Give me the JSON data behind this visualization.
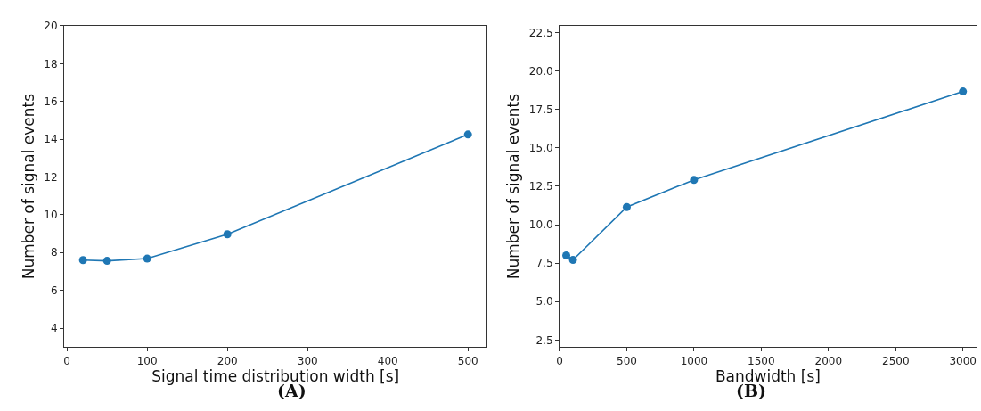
{
  "chart_data": [
    {
      "type": "line",
      "xlabel": "Signal time distribution width [s]",
      "ylabel": "Number of signal events",
      "annotations": [
        "(A)"
      ],
      "x": [
        20,
        50,
        100,
        200,
        500
      ],
      "marker": "circle",
      "line_style": "solid",
      "grid": false,
      "series": [
        {
          "color": "#1f77b4",
          "values": [
            7.6,
            7.56,
            7.68,
            8.97,
            14.25
          ]
        }
      ],
      "xlim": [
        -3.5,
        523.5
      ],
      "xticks": [
        0,
        100,
        200,
        300,
        400,
        500
      ],
      "ylim": [
        3,
        20
      ],
      "yticks": [
        4,
        6,
        8,
        10,
        12,
        14,
        16,
        18,
        20
      ]
    },
    {
      "type": "line",
      "xlabel": "Bandwidth [s]",
      "ylabel": "Number of signal events",
      "annotations": [
        "(B)"
      ],
      "x": [
        50,
        100,
        500,
        1000,
        3000
      ],
      "marker": "circle",
      "line_style": "solid",
      "grid": false,
      "series": [
        {
          "color": "#1f77b4",
          "values": [
            8.0,
            7.71,
            11.15,
            12.92,
            18.67
          ]
        }
      ],
      "xlim": [
        0,
        3100
      ],
      "xticks": [
        0,
        500,
        1000,
        1500,
        2000,
        2500,
        3000
      ],
      "ylim": [
        2.04,
        22.94
      ],
      "yticks": [
        {
          "value": 2.5,
          "label": "2.5"
        },
        {
          "value": 5,
          "label": "5.0"
        },
        {
          "value": 7.5,
          "label": "7.5"
        },
        {
          "value": 10,
          "label": "10.0"
        },
        {
          "value": 12.5,
          "label": "12.5"
        },
        {
          "value": 15,
          "label": "15.0"
        },
        {
          "value": 17.5,
          "label": "17.5"
        },
        {
          "value": 20,
          "label": "20.0"
        },
        {
          "value": 22.5,
          "label": "22.5"
        }
      ]
    }
  ]
}
